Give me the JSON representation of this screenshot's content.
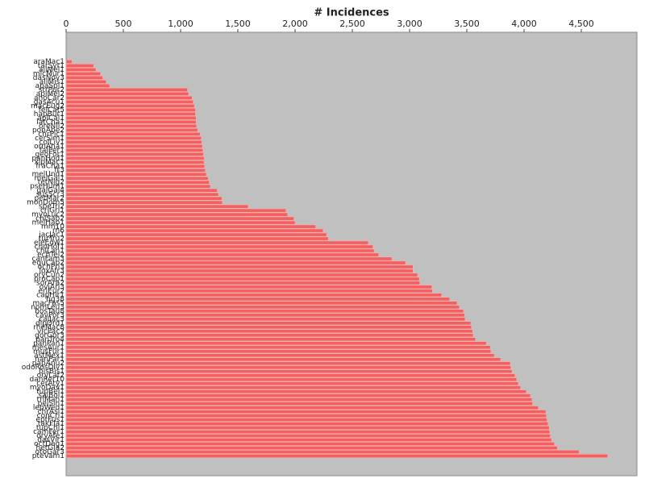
{
  "chart_data": {
    "type": "hbar",
    "title": "# Incidences",
    "categories": [
      "araMac1",
      "tarSyr1",
      "ailMel1",
      "micMur1",
      "dasNov3",
      "allMis1",
      "apaSpi1",
      "strPur2",
      "apiMel2",
      "anoCar2",
      "gasAcu1",
      "macEug2",
      "felCat5",
      "hapBur1",
      "aplCal1",
      "latCha1",
      "oreNil2",
      "ponAbe2",
      "chrPic1",
      "cerSim1",
      "colLiv1",
      "ornAna1",
      "falPer1",
      "geoFor1",
      "panHod1",
      "xipMac1",
      "fraCha1",
      "fr3",
      "melUnd1",
      "melGal1",
      "tetNig2",
      "pseHum1",
      "galGal4",
      "susScr3",
      "petMar2",
      "monDom5",
      "speTri2",
      "criGri1",
      "myoLuc2",
      "chlSab2",
      "melHap1",
      "mm10",
      "rn6",
      "jacJac1",
      "turTru2",
      "eleEdw1",
      "choHof1",
      "chiLan1",
      "echTel2",
      "canFam3",
      "equCab2",
      "ochPri3",
      "loxAfr3",
      "oryCun2",
      "proCap1",
      "sorAra2",
      "oviAri3",
      "eriEur2",
      "capHir1",
      "hg38",
      "macFas5",
      "nomLeu3",
      "bosTau8",
      "cavPor3",
      "calJac3",
      "dipOrd1",
      "rheMac8",
      "vicPac2",
      "gorGor3",
      "panTro4",
      "panPan1",
      "mesAur1",
      "musFur1",
      "astMex1",
      "nanPar1",
      "papAnu2",
      "odoRosDiv1",
      "bisBis1",
      "oryLat2",
      "danRer10",
      "cerAty1",
      "myoDav1",
      "tupBel1",
      "saiBol1",
      "triMan1",
      "pelSin1",
      "lepWed1",
      "chrAsi1",
      "conCri1",
      "eptFus1",
      "takFla1",
      "tupChi1",
      "camFer1",
      "oryAfe1",
      "dasVir1",
      "octDeg1",
      "hetGla2",
      "otoGar3",
      "pteVam1"
    ],
    "values": [
      50,
      240,
      260,
      300,
      320,
      350,
      380,
      1060,
      1070,
      1100,
      1110,
      1120,
      1130,
      1130,
      1135,
      1135,
      1140,
      1150,
      1170,
      1180,
      1185,
      1190,
      1195,
      1200,
      1205,
      1205,
      1210,
      1215,
      1225,
      1240,
      1250,
      1260,
      1320,
      1330,
      1360,
      1365,
      1590,
      1920,
      1935,
      1990,
      2000,
      2180,
      2245,
      2275,
      2290,
      2640,
      2680,
      2690,
      2730,
      2845,
      2965,
      3030,
      3030,
      3070,
      3085,
      3090,
      3195,
      3200,
      3280,
      3350,
      3415,
      3435,
      3470,
      3480,
      3485,
      3535,
      3540,
      3550,
      3555,
      3575,
      3670,
      3705,
      3710,
      3740,
      3795,
      3880,
      3885,
      3895,
      3920,
      3935,
      3950,
      3970,
      4020,
      4055,
      4070,
      4075,
      4125,
      4190,
      4195,
      4200,
      4210,
      4220,
      4225,
      4230,
      4240,
      4265,
      4290,
      4480,
      4730
    ],
    "color": "#f46060",
    "xlim": [
      0,
      4986
    ],
    "xticks": [
      0,
      500,
      {
        "value": 1000,
        "label": "1,000"
      },
      {
        "value": 1500,
        "label": "1,500"
      },
      {
        "value": 2000,
        "label": "2,000"
      },
      {
        "value": 2500,
        "label": "2,500"
      },
      {
        "value": 3000,
        "label": "3,000"
      },
      {
        "value": 3500,
        "label": "3,500"
      },
      {
        "value": 4000,
        "label": "4,000"
      },
      {
        "value": 4500,
        "label": "4,500"
      }
    ]
  }
}
